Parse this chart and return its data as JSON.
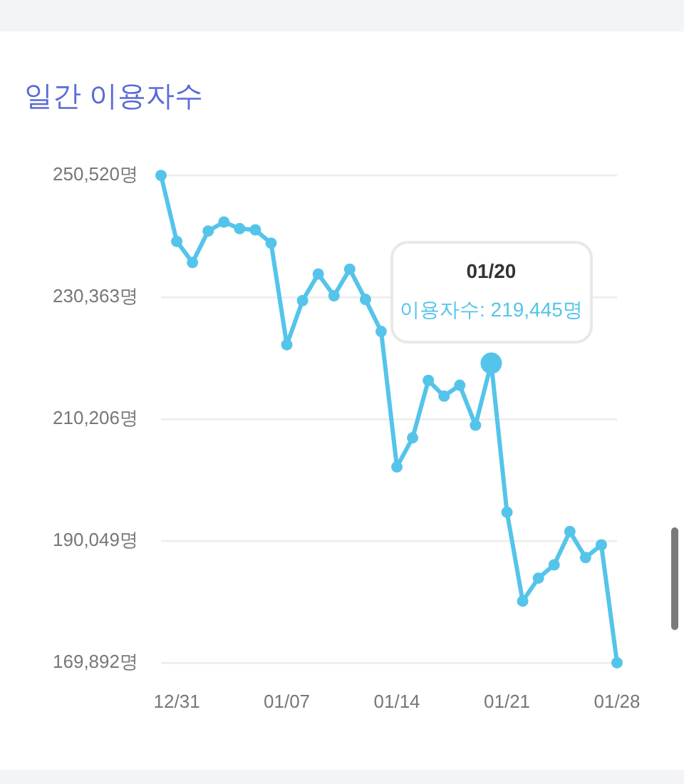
{
  "chart_data": {
    "type": "line",
    "title": "일간 이용자수",
    "categories": [
      null,
      "12/31",
      null,
      null,
      null,
      null,
      null,
      null,
      "01/07",
      null,
      null,
      null,
      null,
      null,
      null,
      "01/14",
      null,
      null,
      null,
      null,
      null,
      null,
      "01/21",
      null,
      null,
      null,
      null,
      null,
      null,
      "01/28"
    ],
    "values": [
      250500,
      239600,
      236100,
      241300,
      242800,
      241700,
      241500,
      239300,
      222500,
      229800,
      234200,
      230600,
      235000,
      230000,
      224700,
      202300,
      207100,
      216600,
      214000,
      215800,
      209200,
      219445,
      194800,
      180100,
      183900,
      186100,
      191600,
      187300,
      189400,
      169900
    ],
    "color": "#55c4ea",
    "ylim": [
      169892,
      250520
    ],
    "yticks": [
      {
        "value": 169892,
        "label": "169,892명"
      },
      {
        "value": 190049,
        "label": "190,049명"
      },
      {
        "value": 210206,
        "label": "210,206명"
      },
      {
        "value": 230363,
        "label": "230,363명"
      },
      {
        "value": 250520,
        "label": "250,520명"
      }
    ],
    "grid": "y",
    "marker": "circle",
    "annotations": [
      {
        "text": "01/20\n이용자수: 219,445명",
        "y": 219445
      }
    ]
  }
}
